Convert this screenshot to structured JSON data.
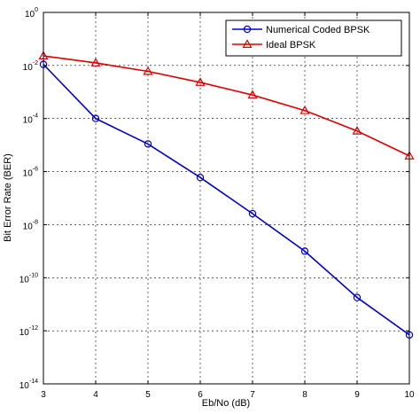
{
  "chart_data": {
    "type": "line",
    "title": "",
    "xlabel": "Eb/No (dB)",
    "ylabel": "Bit Error Rate (BER)",
    "xlim": [
      3,
      10
    ],
    "ylim": [
      1e-14,
      1
    ],
    "yscale": "log",
    "grid": true,
    "legend_position": "top-right",
    "x": [
      3,
      4,
      5,
      6,
      7,
      8,
      9,
      10
    ],
    "x_ticks": [
      "3",
      "4",
      "5",
      "6",
      "7",
      "8",
      "9",
      "10"
    ],
    "y_ticks": [
      {
        "base": "10",
        "exp": "0"
      },
      {
        "base": "10",
        "exp": "-2"
      },
      {
        "base": "10",
        "exp": "-4"
      },
      {
        "base": "10",
        "exp": "-6"
      },
      {
        "base": "10",
        "exp": "-8"
      },
      {
        "base": "10",
        "exp": "-10"
      },
      {
        "base": "10",
        "exp": "-12"
      },
      {
        "base": "10",
        "exp": "-14"
      }
    ],
    "series": [
      {
        "name": "Numerical Coded BPSK",
        "color": "#0000cc",
        "marker": "circle",
        "values": [
          0.011,
          0.0001,
          1.1e-05,
          6e-07,
          2.6e-08,
          1e-09,
          1.8e-11,
          7e-13
        ]
      },
      {
        "name": "Ideal BPSK",
        "color": "#dd0000",
        "marker": "triangle",
        "values": [
          0.023,
          0.0125,
          0.006,
          0.0023,
          0.00077,
          0.0002,
          3.4e-05,
          3.9e-06
        ]
      }
    ]
  }
}
